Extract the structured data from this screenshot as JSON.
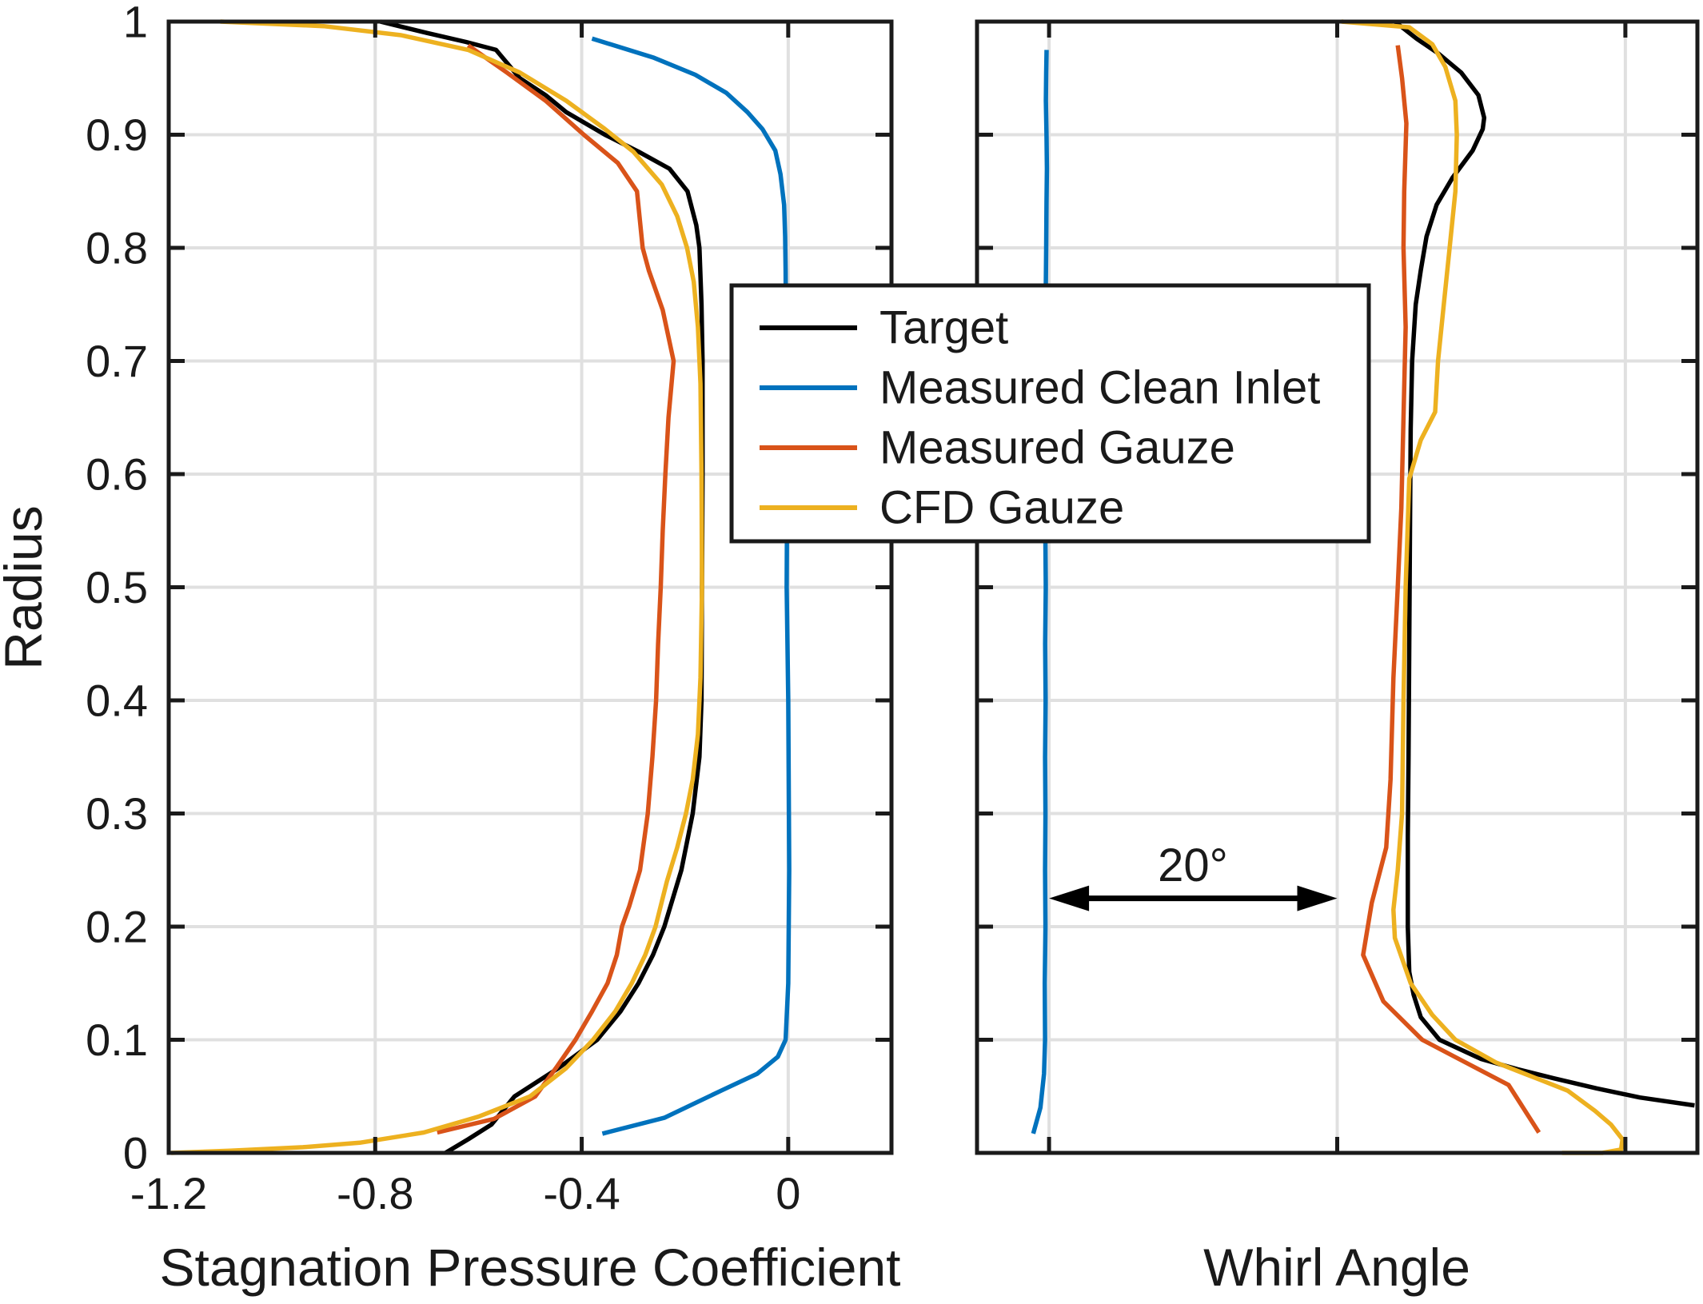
{
  "figure": {
    "background": "#ffffff",
    "text_color": "#1a1a1a",
    "grid_color": "#e0e0e0",
    "axis_color": "#1a1a1a",
    "ylabel": "Radius",
    "annotation": {
      "text": "20°"
    },
    "legend": {
      "position": "center",
      "entries": [
        {
          "label": "Target",
          "color": "#000000"
        },
        {
          "label": "Measured Clean Inlet",
          "color": "#0072BD"
        },
        {
          "label": "Measured Gauze",
          "color": "#D95319"
        },
        {
          "label": "CFD Gauze",
          "color": "#EDB120"
        }
      ]
    }
  },
  "chart_data": [
    {
      "type": "line",
      "title": "",
      "xlabel": "Stagnation Pressure Coefficient",
      "ylabel": "Radius",
      "xlim": [
        -1.2,
        0.2
      ],
      "ylim": [
        0,
        1
      ],
      "xticks": [
        -1.2,
        -0.8,
        -0.4,
        0
      ],
      "xtick_labels": [
        "-1.2",
        "-0.8",
        "-0.4",
        "0"
      ],
      "yticks": [
        0,
        0.1,
        0.2,
        0.3,
        0.4,
        0.5,
        0.6,
        0.7,
        0.8,
        0.9,
        1
      ],
      "ytick_labels": [
        "0",
        "0.1",
        "0.2",
        "0.3",
        "0.4",
        "0.5",
        "0.6",
        "0.7",
        "0.8",
        "0.9",
        "1"
      ],
      "grid": true,
      "series": [
        {
          "name": "Target",
          "color": "#000000",
          "points": [
            [
              -0.664,
              0.0
            ],
            [
              -0.62,
              0.012
            ],
            [
              -0.575,
              0.025
            ],
            [
              -0.53,
              0.05
            ],
            [
              -0.445,
              0.075
            ],
            [
              -0.37,
              0.1
            ],
            [
              -0.325,
              0.125
            ],
            [
              -0.29,
              0.15
            ],
            [
              -0.262,
              0.175
            ],
            [
              -0.24,
              0.2
            ],
            [
              -0.207,
              0.25
            ],
            [
              -0.185,
              0.3
            ],
            [
              -0.172,
              0.35
            ],
            [
              -0.168,
              0.4
            ],
            [
              -0.167,
              0.5
            ],
            [
              -0.166,
              0.6
            ],
            [
              -0.166,
              0.7
            ],
            [
              -0.168,
              0.75
            ],
            [
              -0.172,
              0.8
            ],
            [
              -0.178,
              0.82
            ],
            [
              -0.195,
              0.85
            ],
            [
              -0.23,
              0.87
            ],
            [
              -0.29,
              0.885
            ],
            [
              -0.355,
              0.9
            ],
            [
              -0.43,
              0.92
            ],
            [
              -0.47,
              0.935
            ],
            [
              -0.52,
              0.95
            ],
            [
              -0.566,
              0.975
            ],
            [
              -0.624,
              0.982
            ],
            [
              -0.7,
              0.99
            ],
            [
              -0.79,
              1.0
            ]
          ]
        },
        {
          "name": "Measured Clean Inlet",
          "color": "#0072BD",
          "points": [
            [
              -0.36,
              0.017
            ],
            [
              -0.24,
              0.031
            ],
            [
              -0.13,
              0.055
            ],
            [
              -0.06,
              0.07
            ],
            [
              -0.02,
              0.085
            ],
            [
              -0.005,
              0.1
            ],
            [
              0.0,
              0.15
            ],
            [
              0.002,
              0.25
            ],
            [
              0.0,
              0.4
            ],
            [
              -0.003,
              0.5
            ],
            [
              -0.002,
              0.6
            ],
            [
              -0.004,
              0.7
            ],
            [
              -0.005,
              0.78
            ],
            [
              -0.006,
              0.81
            ],
            [
              -0.008,
              0.838
            ],
            [
              -0.015,
              0.865
            ],
            [
              -0.025,
              0.886
            ],
            [
              -0.05,
              0.905
            ],
            [
              -0.079,
              0.92
            ],
            [
              -0.12,
              0.937
            ],
            [
              -0.18,
              0.953
            ],
            [
              -0.26,
              0.968
            ],
            [
              -0.38,
              0.985
            ]
          ]
        },
        {
          "name": "Measured Gauze",
          "color": "#D95319",
          "points": [
            [
              -0.68,
              0.018
            ],
            [
              -0.57,
              0.03
            ],
            [
              -0.49,
              0.05
            ],
            [
              -0.45,
              0.075
            ],
            [
              -0.412,
              0.1
            ],
            [
              -0.38,
              0.125
            ],
            [
              -0.35,
              0.15
            ],
            [
              -0.332,
              0.175
            ],
            [
              -0.322,
              0.2
            ],
            [
              -0.308,
              0.218
            ],
            [
              -0.287,
              0.25
            ],
            [
              -0.272,
              0.3
            ],
            [
              -0.263,
              0.35
            ],
            [
              -0.256,
              0.4
            ],
            [
              -0.252,
              0.45
            ],
            [
              -0.247,
              0.5
            ],
            [
              -0.243,
              0.55
            ],
            [
              -0.238,
              0.6
            ],
            [
              -0.232,
              0.65
            ],
            [
              -0.222,
              0.7
            ],
            [
              -0.243,
              0.745
            ],
            [
              -0.27,
              0.78
            ],
            [
              -0.282,
              0.8
            ],
            [
              -0.293,
              0.85
            ],
            [
              -0.33,
              0.875
            ],
            [
              -0.396,
              0.9
            ],
            [
              -0.47,
              0.93
            ],
            [
              -0.545,
              0.955
            ],
            [
              -0.62,
              0.979
            ]
          ]
        },
        {
          "name": "CFD Gauze",
          "color": "#EDB120",
          "points": [
            [
              -1.195,
              0.0
            ],
            [
              -1.08,
              0.002
            ],
            [
              -0.94,
              0.005
            ],
            [
              -0.83,
              0.009
            ],
            [
              -0.706,
              0.018
            ],
            [
              -0.6,
              0.032
            ],
            [
              -0.5,
              0.05
            ],
            [
              -0.43,
              0.075
            ],
            [
              -0.378,
              0.1
            ],
            [
              -0.335,
              0.125
            ],
            [
              -0.303,
              0.15
            ],
            [
              -0.277,
              0.175
            ],
            [
              -0.257,
              0.2
            ],
            [
              -0.235,
              0.24
            ],
            [
              -0.215,
              0.27
            ],
            [
              -0.198,
              0.3
            ],
            [
              -0.185,
              0.33
            ],
            [
              -0.175,
              0.37
            ],
            [
              -0.17,
              0.42
            ],
            [
              -0.167,
              0.5
            ],
            [
              -0.168,
              0.6
            ],
            [
              -0.17,
              0.68
            ],
            [
              -0.175,
              0.73
            ],
            [
              -0.183,
              0.77
            ],
            [
              -0.196,
              0.8
            ],
            [
              -0.215,
              0.828
            ],
            [
              -0.245,
              0.856
            ],
            [
              -0.3,
              0.885
            ],
            [
              -0.355,
              0.905
            ],
            [
              -0.43,
              0.93
            ],
            [
              -0.52,
              0.955
            ],
            [
              -0.62,
              0.975
            ],
            [
              -0.75,
              0.988
            ],
            [
              -0.9,
              0.996
            ],
            [
              -1.1,
              1.0
            ]
          ]
        }
      ]
    },
    {
      "type": "line",
      "title": "",
      "xlabel": "Whirl Angle",
      "ylabel": "Radius",
      "xlim": [
        -5,
        45
      ],
      "ylim": [
        0,
        1
      ],
      "xticks": [
        0,
        20,
        40
      ],
      "xtick_labels": [],
      "note": "x tick labels are not shown; adjacent vertical gridlines are 20 degrees apart (values relative, first gridline = 0)",
      "yticks": [
        0,
        0.1,
        0.2,
        0.3,
        0.4,
        0.5,
        0.6,
        0.7,
        0.8,
        0.9,
        1
      ],
      "ytick_labels": [],
      "grid": true,
      "annotation": {
        "text": "20°",
        "x_from": 0,
        "x_to": 20,
        "y_arrow": 0.225,
        "y_text": 0.252
      },
      "series": [
        {
          "name": "Target",
          "color": "#000000",
          "points": [
            [
              44.8,
              0.042
            ],
            [
              41.0,
              0.049
            ],
            [
              38.0,
              0.057
            ],
            [
              35.0,
              0.066
            ],
            [
              32.5,
              0.074
            ],
            [
              30.0,
              0.083
            ],
            [
              27.1,
              0.1
            ],
            [
              25.8,
              0.12
            ],
            [
              25.3,
              0.14
            ],
            [
              25.0,
              0.16
            ],
            [
              24.9,
              0.2
            ],
            [
              24.9,
              0.28
            ],
            [
              24.95,
              0.35
            ],
            [
              25.0,
              0.45
            ],
            [
              25.05,
              0.55
            ],
            [
              25.1,
              0.64
            ],
            [
              25.2,
              0.7
            ],
            [
              25.45,
              0.75
            ],
            [
              25.8,
              0.78
            ],
            [
              26.2,
              0.81
            ],
            [
              26.9,
              0.838
            ],
            [
              28.0,
              0.862
            ],
            [
              29.4,
              0.886
            ],
            [
              30.1,
              0.905
            ],
            [
              30.2,
              0.915
            ],
            [
              29.8,
              0.935
            ],
            [
              28.6,
              0.955
            ],
            [
              27.0,
              0.972
            ],
            [
              25.5,
              0.985
            ],
            [
              24.0,
              1.0
            ]
          ]
        },
        {
          "name": "Measured Clean Inlet",
          "color": "#0072BD",
          "points": [
            [
              -1.1,
              0.017
            ],
            [
              -0.6,
              0.04
            ],
            [
              -0.35,
              0.07
            ],
            [
              -0.28,
              0.1
            ],
            [
              -0.3,
              0.15
            ],
            [
              -0.25,
              0.2
            ],
            [
              -0.28,
              0.25
            ],
            [
              -0.25,
              0.3
            ],
            [
              -0.28,
              0.35
            ],
            [
              -0.24,
              0.4
            ],
            [
              -0.27,
              0.45
            ],
            [
              -0.23,
              0.5
            ],
            [
              -0.26,
              0.55
            ],
            [
              -0.22,
              0.6
            ],
            [
              -0.25,
              0.65
            ],
            [
              -0.22,
              0.7
            ],
            [
              -0.24,
              0.75
            ],
            [
              -0.2,
              0.8
            ],
            [
              -0.18,
              0.84
            ],
            [
              -0.15,
              0.87
            ],
            [
              -0.18,
              0.9
            ],
            [
              -0.22,
              0.93
            ],
            [
              -0.2,
              0.955
            ],
            [
              -0.17,
              0.975
            ]
          ]
        },
        {
          "name": "Measured Gauze",
          "color": "#D95319",
          "points": [
            [
              34.0,
              0.018
            ],
            [
              31.9,
              0.06
            ],
            [
              28.6,
              0.082
            ],
            [
              25.9,
              0.1
            ],
            [
              23.2,
              0.134
            ],
            [
              21.8,
              0.175
            ],
            [
              22.4,
              0.221
            ],
            [
              23.4,
              0.27
            ],
            [
              23.7,
              0.33
            ],
            [
              23.9,
              0.42
            ],
            [
              24.2,
              0.5
            ],
            [
              24.45,
              0.57
            ],
            [
              24.6,
              0.65
            ],
            [
              24.75,
              0.73
            ],
            [
              24.6,
              0.8
            ],
            [
              24.65,
              0.85
            ],
            [
              24.8,
              0.91
            ],
            [
              24.5,
              0.95
            ],
            [
              24.2,
              0.979
            ]
          ]
        },
        {
          "name": "CFD Gauze",
          "color": "#EDB120",
          "points": [
            [
              35.6,
              0.0
            ],
            [
              38.4,
              0.0
            ],
            [
              39.7,
              0.003
            ],
            [
              39.8,
              0.012
            ],
            [
              39.0,
              0.025
            ],
            [
              37.9,
              0.037
            ],
            [
              36.0,
              0.055
            ],
            [
              34.0,
              0.065
            ],
            [
              31.0,
              0.08
            ],
            [
              28.2,
              0.1
            ],
            [
              26.6,
              0.122
            ],
            [
              25.1,
              0.15
            ],
            [
              24.0,
              0.19
            ],
            [
              23.9,
              0.215
            ],
            [
              24.2,
              0.25
            ],
            [
              24.5,
              0.3
            ],
            [
              24.6,
              0.4
            ],
            [
              24.75,
              0.5
            ],
            [
              25.0,
              0.596
            ],
            [
              25.8,
              0.63
            ],
            [
              26.8,
              0.655
            ],
            [
              27.0,
              0.7
            ],
            [
              27.4,
              0.75
            ],
            [
              27.8,
              0.8
            ],
            [
              28.2,
              0.85
            ],
            [
              28.3,
              0.9
            ],
            [
              28.2,
              0.93
            ],
            [
              27.5,
              0.96
            ],
            [
              26.6,
              0.98
            ],
            [
              25.0,
              0.995
            ],
            [
              20.3,
              1.0
            ]
          ]
        }
      ]
    }
  ]
}
